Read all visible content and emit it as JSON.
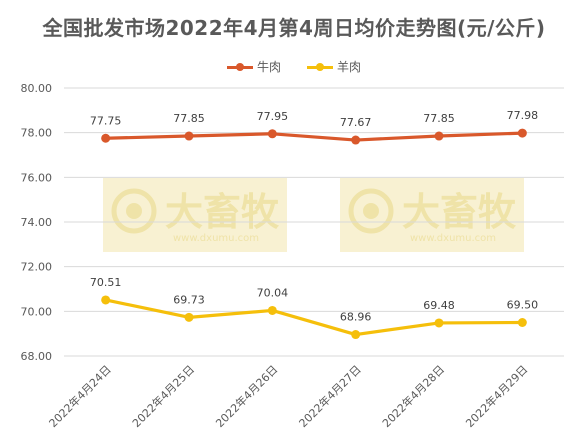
{
  "chart_data": {
    "type": "line",
    "title": "全国批发市场2022年4月第4周日均价走势图(元/公斤)",
    "categories": [
      "2022年4月24日",
      "2022年4月25日",
      "2022年4月26日",
      "2022年4月27日",
      "2022年4月28日",
      "2022年4月29日"
    ],
    "series": [
      {
        "name": "牛肉",
        "color": "#d9582b",
        "values": [
          77.75,
          77.85,
          77.95,
          77.67,
          77.85,
          77.98
        ],
        "labels": [
          "77.75",
          "77.85",
          "77.95",
          "77.67",
          "77.85",
          "77.98"
        ]
      },
      {
        "name": "羊肉",
        "color": "#f5bf0b",
        "values": [
          70.51,
          69.73,
          70.04,
          68.96,
          69.48,
          69.5
        ],
        "labels": [
          "70.51",
          "69.73",
          "70.04",
          "68.96",
          "69.48",
          "69.50"
        ]
      }
    ],
    "ylim": [
      68,
      80
    ],
    "yticks": [
      "68.00",
      "70.00",
      "72.00",
      "74.00",
      "76.00",
      "78.00",
      "80.00"
    ],
    "grid": "horizontal",
    "legend_position": "top",
    "watermark": {
      "text": "大畜牧",
      "sub": "www.dxumu.com",
      "color": "#efe3a8"
    }
  }
}
